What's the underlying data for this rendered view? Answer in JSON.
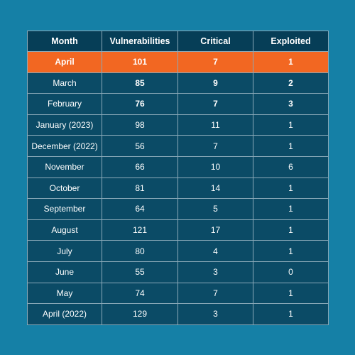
{
  "chart_data": {
    "type": "table",
    "columns": [
      "Month",
      "Vulnerabilities",
      "Critical",
      "Exploited"
    ],
    "rows": [
      [
        "April",
        "101",
        "7",
        "1"
      ],
      [
        "March",
        "85",
        "9",
        "2"
      ],
      [
        "February",
        "76",
        "7",
        "3"
      ],
      [
        "January (2023)",
        "98",
        "11",
        "1"
      ],
      [
        "December (2022)",
        "56",
        "7",
        "1"
      ],
      [
        "November",
        "66",
        "10",
        "6"
      ],
      [
        "October",
        "81",
        "14",
        "1"
      ],
      [
        "September",
        "64",
        "5",
        "1"
      ],
      [
        "August",
        "121",
        "17",
        "1"
      ],
      [
        "July",
        "80",
        "4",
        "1"
      ],
      [
        "June",
        "55",
        "3",
        "0"
      ],
      [
        "May",
        "74",
        "7",
        "1"
      ],
      [
        "April (2022)",
        "129",
        "3",
        "1"
      ]
    ],
    "highlight_row": 0,
    "bold_rows": [
      0,
      1,
      2
    ],
    "colors": {
      "background": "#1580a6",
      "header": "#063e57",
      "cell": "#0b4b66",
      "highlight": "#f26722",
      "border": "#8aa9b8",
      "text": "#ffffff"
    }
  }
}
